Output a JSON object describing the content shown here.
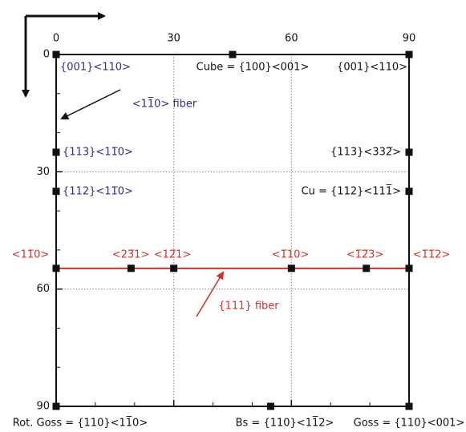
{
  "axes": {
    "x": {
      "lim": [
        0,
        90
      ],
      "ticks": [
        0,
        30,
        60,
        90
      ]
    },
    "y": {
      "lim": [
        0,
        90
      ],
      "ticks": [
        0,
        30,
        60,
        90
      ]
    }
  },
  "points": [
    {
      "x": 0,
      "y": 0,
      "label": "{001}<110>"
    },
    {
      "x": 45,
      "y": 0,
      "label": "Cube = {100}<001>"
    },
    {
      "x": 90,
      "y": 0,
      "label": "{001}<110>"
    },
    {
      "x": 0,
      "y": 25,
      "label": "{113}<11̅0>"
    },
    {
      "x": 0,
      "y": 35,
      "label": "{112}<11̅0>"
    },
    {
      "x": 90,
      "y": 25,
      "label": "{113}<332̅>"
    },
    {
      "x": 90,
      "y": 35,
      "label": "Cu = {112}<111̅>"
    },
    {
      "x": 0,
      "y": 90,
      "label": "Rot. Goss = {110}<11̅0>"
    },
    {
      "x": 54.7,
      "y": 90,
      "label": "Bs = {110}<11̅2>"
    },
    {
      "x": 90,
      "y": 90,
      "label": "Goss = {110}<001>"
    }
  ],
  "fiber_line": {
    "y": 54.7,
    "label": "{111} fiber",
    "points": [
      {
        "x": 0,
        "label": "<11̅0>"
      },
      {
        "x": 19.1,
        "label": "<23̅1>"
      },
      {
        "x": 30,
        "label": "<12̅1>"
      },
      {
        "x": 60,
        "label": "<1̅10>"
      },
      {
        "x": 79.1,
        "label": "<1̅2̅3>"
      },
      {
        "x": 90,
        "label": "<1̅1̅2>"
      }
    ]
  },
  "annotations": {
    "fiber_110": "<11̅0> fiber"
  }
}
